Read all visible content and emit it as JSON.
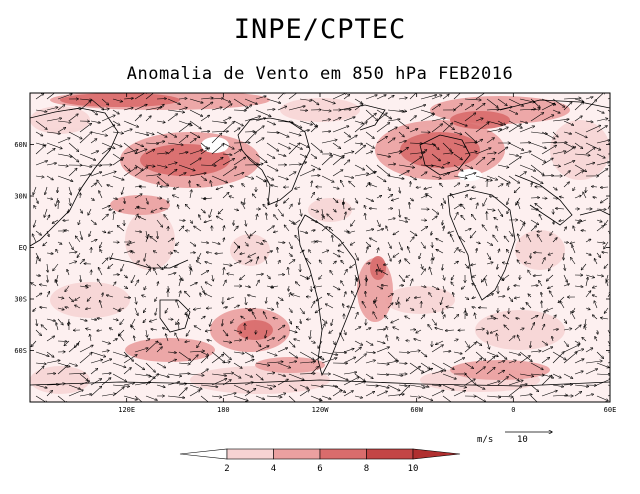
{
  "header": {
    "title": "INPE/CPTEC",
    "subtitle": "Anomalia de Vento em 850 hPa FEB2016"
  },
  "axes": {
    "lat_labels": [
      "60N",
      "30N",
      "EQ",
      "30S",
      "60S"
    ],
    "lat_values": [
      60,
      30,
      0,
      -30,
      -60
    ],
    "lon_labels": [
      "120E",
      "180",
      "120W",
      "60W",
      "0",
      "60E"
    ],
    "lon_values": [
      120,
      180,
      240,
      300,
      360,
      420
    ],
    "lon_range": [
      60,
      420
    ],
    "lat_range": [
      -90,
      90
    ]
  },
  "colorbar": {
    "ticks": [
      "2",
      "4",
      "6",
      "8",
      "10"
    ],
    "colors": [
      "#ffffff",
      "#f7d3d3",
      "#eba0a0",
      "#d96c6c",
      "#c34545",
      "#b02f2f"
    ]
  },
  "reference_vector": {
    "unit": "m/s",
    "value": "10"
  },
  "colors": {
    "land_outline": "#000000",
    "shade_light": "#f7d3d3",
    "shade_mid": "#eba0a0",
    "shade_dark": "#d96c6c"
  }
}
